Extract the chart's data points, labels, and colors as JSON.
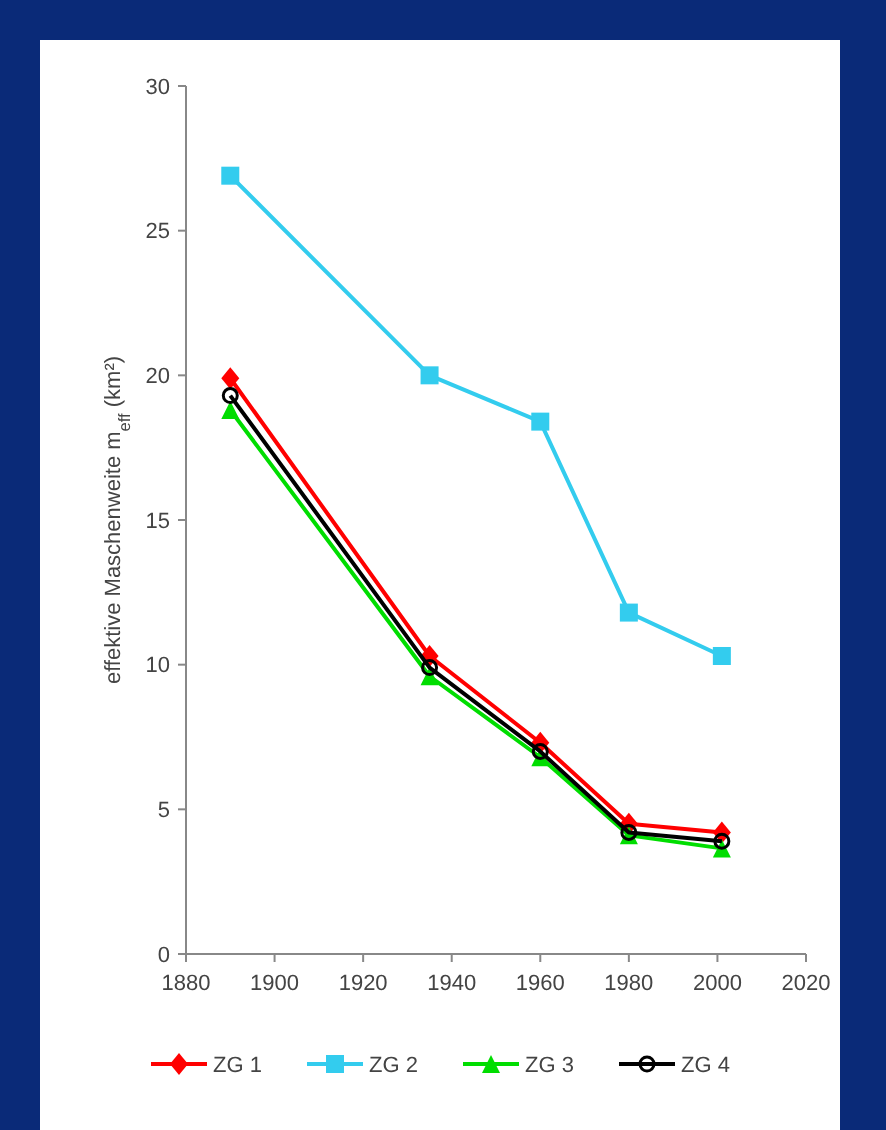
{
  "chart_data": {
    "type": "line",
    "ylabel": "effektive Maschenweite m$_{eff}$ (km²)",
    "x": [
      1890,
      1935,
      1960,
      1980,
      2001
    ],
    "xlim": [
      1880,
      2020
    ],
    "xticks": [
      1880,
      1900,
      1920,
      1940,
      1960,
      1980,
      2000,
      2020
    ],
    "ylim": [
      0,
      30
    ],
    "yticks": [
      0,
      5,
      10,
      15,
      20,
      25,
      30
    ],
    "grid": false,
    "legend": "bottom",
    "series": [
      {
        "name": "ZG 1",
        "color": "#ff0000",
        "marker": "diamond",
        "values": [
          19.9,
          10.3,
          7.3,
          4.5,
          4.2
        ]
      },
      {
        "name": "ZG 2",
        "color": "#33ccee",
        "marker": "square",
        "values": [
          26.9,
          20,
          18.4,
          11.8,
          10.3
        ]
      },
      {
        "name": "ZG 3",
        "color": "#00dd00",
        "marker": "triangle",
        "values": [
          18.8,
          9.6,
          6.8,
          4.1,
          3.65
        ]
      },
      {
        "name": "ZG 4",
        "color": "#000000",
        "marker": "circle",
        "values": [
          19.3,
          9.9,
          7.0,
          4.2,
          3.9
        ]
      }
    ]
  }
}
